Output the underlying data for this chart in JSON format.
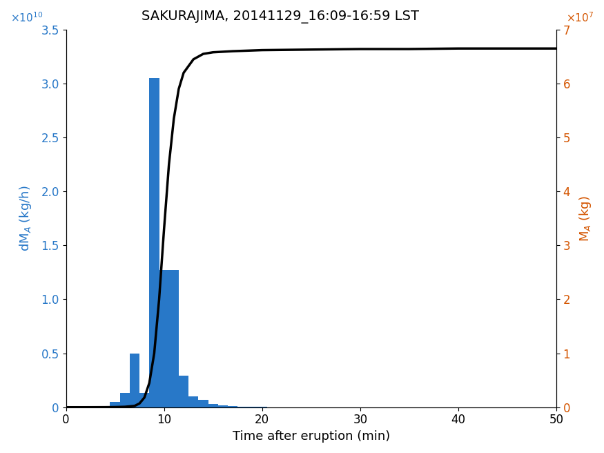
{
  "title": "SAKURAJIMA, 20141129_16:09-16:59 LST",
  "xlabel": "Time after eruption (min)",
  "ylabel_left": "dM$_A$ (kg/h)",
  "ylabel_right": "M$_A$ (kg)",
  "xlim": [
    0,
    50
  ],
  "ylim_left": [
    0,
    35000000000.0
  ],
  "ylim_right": [
    0,
    70000000.0
  ],
  "bar_color": "#2878c8",
  "bar_x": [
    5,
    6,
    7,
    8,
    9,
    10,
    11,
    12,
    13,
    14,
    15,
    16,
    17,
    18,
    19,
    20,
    21,
    22,
    23,
    24,
    25,
    26,
    27,
    28,
    29,
    30,
    35,
    40,
    45,
    48
  ],
  "bar_h": [
    500000000.0,
    1300000000.0,
    5000000000.0,
    1300000000.0,
    30500000000.0,
    12700000000.0,
    12700000000.0,
    2900000000.0,
    1000000000.0,
    700000000.0,
    300000000.0,
    150000000.0,
    80000000.0,
    50000000.0,
    30000000.0,
    20000000.0,
    10000000.0,
    8000000.0,
    5000000.0,
    3000000.0,
    2000000.0,
    1000000.0,
    800000.0,
    500000.0,
    300000.0,
    200000.0,
    50000.0,
    20000.0,
    10000.0,
    5000.0
  ],
  "bar_width": 1.0,
  "t_curve": [
    0,
    2,
    4,
    5,
    6,
    7,
    7.5,
    8,
    8.5,
    9,
    9.5,
    10,
    10.5,
    11,
    11.5,
    12,
    13,
    14,
    15,
    17,
    20,
    25,
    30,
    35,
    40,
    45,
    50
  ],
  "M_curve": [
    0,
    0,
    10000.0,
    30000.0,
    80000.0,
    250000.0,
    700000.0,
    1800000.0,
    4500000.0,
    10000000.0,
    20000000.0,
    33000000.0,
    45000000.0,
    53500000.0,
    59000000.0,
    62000000.0,
    64500000.0,
    65500000.0,
    65800000.0,
    66000000.0,
    66200000.0,
    66300000.0,
    66400000.0,
    66400000.0,
    66500000.0,
    66500000.0,
    66500000.0
  ],
  "line_color": "#000000",
  "line_width": 2.5,
  "background_color": "#ffffff",
  "title_fontsize": 14,
  "label_fontsize": 13,
  "tick_fontsize": 12,
  "left_yticks": [
    0,
    5000000000.0,
    10000000000.0,
    15000000000.0,
    20000000000.0,
    25000000000.0,
    30000000000.0,
    35000000000.0
  ],
  "right_yticks": [
    0,
    10000000.0,
    20000000.0,
    30000000.0,
    40000000.0,
    50000000.0,
    60000000.0,
    70000000.0
  ],
  "xticks": [
    0,
    10,
    20,
    30,
    40,
    50
  ]
}
